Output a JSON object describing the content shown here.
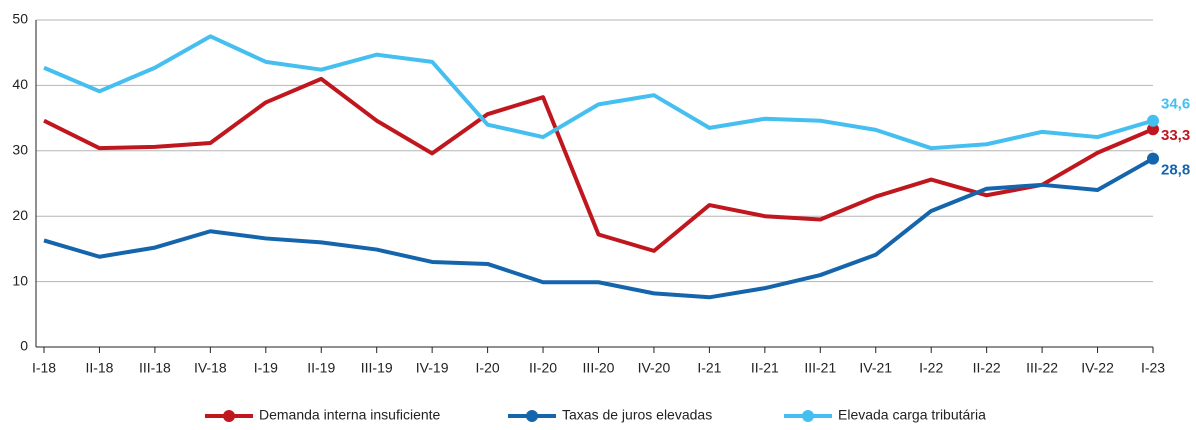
{
  "chart_data": {
    "type": "line",
    "categories": [
      "I-18",
      "II-18",
      "III-18",
      "IV-18",
      "I-19",
      "II-19",
      "III-19",
      "IV-19",
      "I-20",
      "II-20",
      "III-20",
      "IV-20",
      "I-21",
      "II-21",
      "III-21",
      "IV-21",
      "I-22",
      "II-22",
      "III-22",
      "IV-22",
      "I-23"
    ],
    "series": [
      {
        "name": "Demanda interna insuficiente",
        "color": "#c0171f",
        "values": [
          34.6,
          30.4,
          30.6,
          31.2,
          37.4,
          41.0,
          34.6,
          29.6,
          35.6,
          38.2,
          17.2,
          14.7,
          21.7,
          20.0,
          19.5,
          23.0,
          25.6,
          23.2,
          24.8,
          29.7,
          33.3
        ],
        "value_labels": [
          null,
          null,
          null,
          null,
          null,
          null,
          null,
          null,
          null,
          null,
          null,
          null,
          null,
          null,
          null,
          null,
          null,
          null,
          null,
          null,
          "33,3"
        ]
      },
      {
        "name": "Taxas de juros elevadas",
        "color": "#1565ad",
        "values": [
          16.3,
          13.8,
          15.2,
          17.7,
          16.6,
          16.0,
          14.9,
          13.0,
          12.7,
          9.9,
          9.9,
          8.2,
          7.6,
          9.0,
          11.0,
          14.1,
          20.8,
          24.2,
          24.8,
          24.0,
          28.8
        ],
        "value_labels": [
          null,
          null,
          null,
          null,
          null,
          null,
          null,
          null,
          null,
          null,
          null,
          null,
          null,
          null,
          null,
          null,
          null,
          null,
          null,
          null,
          "28,8"
        ]
      },
      {
        "name": "Elevada carga tributária",
        "color": "#45bff0",
        "values": [
          42.7,
          39.1,
          42.7,
          47.5,
          43.6,
          42.4,
          44.7,
          43.6,
          34.0,
          32.1,
          37.1,
          38.5,
          33.5,
          34.9,
          34.6,
          33.2,
          30.4,
          31.0,
          32.9,
          32.1,
          34.6
        ],
        "value_labels": [
          null,
          null,
          null,
          null,
          null,
          null,
          null,
          null,
          null,
          null,
          null,
          null,
          null,
          null,
          null,
          null,
          null,
          null,
          null,
          null,
          "34,6"
        ]
      }
    ],
    "ylim": [
      0,
      50
    ],
    "yticks": [
      0,
      10,
      20,
      30,
      40,
      50
    ],
    "grid": true,
    "legend": "bottom"
  }
}
